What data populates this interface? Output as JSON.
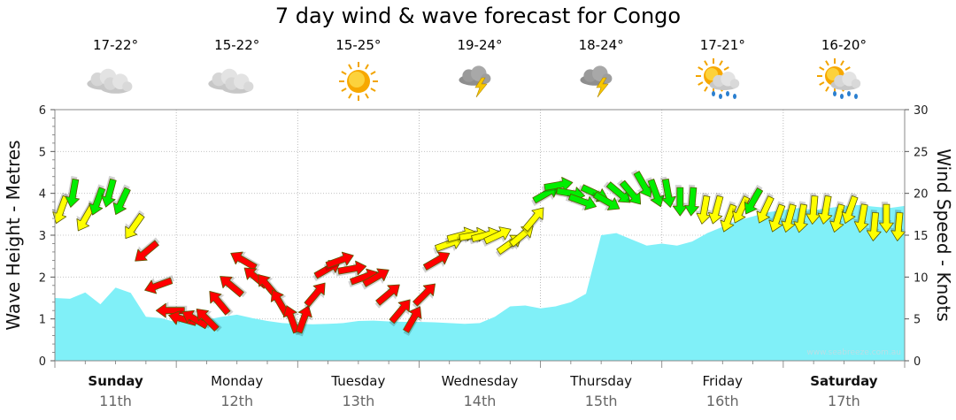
{
  "chart_data": {
    "type": "area",
    "title": "7 day wind & wave forecast for Congo",
    "ylabel_left": "Wave Height - Metres",
    "ylabel_right": "Wind Speed - Knots",
    "ylim_left": [
      0,
      6
    ],
    "ylim_right": [
      0,
      30
    ],
    "yticks_left": [
      "0",
      "1",
      "2",
      "3",
      "4",
      "5",
      "6"
    ],
    "yticks_right": [
      "0",
      "5",
      "10",
      "15",
      "20",
      "25",
      "30"
    ],
    "credit": "www.seabreeze.com.au",
    "grid": true,
    "days": [
      {
        "name": "Sunday",
        "date": "11th",
        "bold": true,
        "temp": "17-22°",
        "icon": "cloudy-icon"
      },
      {
        "name": "Monday",
        "date": "12th",
        "bold": false,
        "temp": "15-22°",
        "icon": "cloudy-icon"
      },
      {
        "name": "Tuesday",
        "date": "13th",
        "bold": false,
        "temp": "15-25°",
        "icon": "sunny-icon"
      },
      {
        "name": "Wednesday",
        "date": "14th",
        "bold": false,
        "temp": "19-24°",
        "icon": "thunderstorm-icon"
      },
      {
        "name": "Thursday",
        "date": "15th",
        "bold": false,
        "temp": "18-24°",
        "icon": "thunderstorm-icon"
      },
      {
        "name": "Friday",
        "date": "16th",
        "bold": false,
        "temp": "17-21°",
        "icon": "sun-showers-icon"
      },
      {
        "name": "Saturday",
        "date": "17th",
        "bold": true,
        "temp": "16-20°",
        "icon": "sun-showers-icon"
      }
    ],
    "wave_series": {
      "color": "#80f0f8",
      "x": [
        0,
        0.125,
        0.25,
        0.375,
        0.5,
        0.625,
        0.75,
        0.875,
        1,
        1.125,
        1.25,
        1.375,
        1.5,
        1.625,
        1.75,
        1.875,
        2,
        2.125,
        2.25,
        2.375,
        2.5,
        2.625,
        2.75,
        2.875,
        3,
        3.125,
        3.25,
        3.375,
        3.5,
        3.625,
        3.75,
        3.875,
        4,
        4.125,
        4.25,
        4.375,
        4.5,
        4.625,
        4.75,
        4.875,
        5,
        5.125,
        5.25,
        5.375,
        5.5,
        5.625,
        5.75,
        5.875,
        6,
        6.125,
        6.25,
        6.375,
        6.5,
        6.625,
        6.75,
        6.875,
        7
      ],
      "values": [
        1.5,
        1.48,
        1.63,
        1.35,
        1.75,
        1.62,
        1.05,
        1.02,
        0.92,
        1.0,
        0.98,
        1.05,
        1.1,
        1.02,
        0.95,
        0.9,
        0.88,
        0.87,
        0.88,
        0.9,
        0.95,
        0.96,
        0.94,
        0.93,
        0.93,
        0.92,
        0.9,
        0.88,
        0.9,
        1.05,
        1.3,
        1.32,
        1.25,
        1.3,
        1.4,
        1.6,
        3.0,
        3.05,
        2.9,
        2.75,
        2.8,
        2.75,
        2.85,
        3.05,
        3.2,
        3.35,
        3.45,
        3.55,
        3.6,
        3.65,
        3.6,
        3.65,
        3.7,
        3.72,
        3.68,
        3.65,
        3.7
      ]
    },
    "wind_series": {
      "unit": "knots",
      "colors": {
        "strong": "#ff0000",
        "moderate": "#ffff00",
        "light": "#00ee00"
      },
      "x": [
        0.05,
        0.15,
        0.25,
        0.35,
        0.45,
        0.55,
        0.65,
        0.75,
        0.85,
        0.95,
        1.05,
        1.15,
        1.25,
        1.35,
        1.45,
        1.55,
        1.65,
        1.75,
        1.85,
        1.95,
        2.05,
        2.15,
        2.25,
        2.35,
        2.45,
        2.55,
        2.65,
        2.75,
        2.85,
        2.95,
        3.05,
        3.15,
        3.25,
        3.35,
        3.45,
        3.55,
        3.65,
        3.75,
        3.85,
        3.95,
        4.05,
        4.15,
        4.25,
        4.35,
        4.45,
        4.55,
        4.65,
        4.75,
        4.85,
        4.95,
        5.05,
        5.15,
        5.25,
        5.35,
        5.45,
        5.55,
        5.65,
        5.75,
        5.85,
        5.95,
        6.05,
        6.15,
        6.25,
        6.35,
        6.45,
        6.55,
        6.65,
        6.75,
        6.85,
        6.95
      ],
      "speed": [
        18,
        20,
        17,
        19,
        20,
        19,
        16,
        13,
        9,
        6,
        5,
        5,
        5,
        7,
        9,
        12,
        10,
        9,
        7,
        5,
        5,
        8,
        11,
        12,
        11,
        10,
        10,
        8,
        6,
        5,
        8,
        12,
        14,
        15,
        15,
        15,
        15,
        14,
        15,
        17,
        20,
        21,
        20,
        19,
        20,
        19,
        20,
        20,
        21,
        20,
        20,
        19,
        19,
        18,
        18,
        17,
        18,
        19,
        18,
        17,
        17,
        17,
        18,
        18,
        17,
        18,
        17,
        16,
        17,
        16
      ],
      "direction_deg": [
        200,
        190,
        210,
        200,
        195,
        205,
        215,
        230,
        250,
        270,
        285,
        300,
        315,
        320,
        310,
        300,
        310,
        320,
        330,
        340,
        20,
        40,
        60,
        70,
        80,
        70,
        60,
        50,
        40,
        30,
        45,
        60,
        70,
        75,
        80,
        75,
        65,
        55,
        50,
        40,
        60,
        80,
        100,
        110,
        115,
        120,
        130,
        140,
        150,
        160,
        170,
        180,
        185,
        190,
        195,
        200,
        205,
        210,
        205,
        200,
        195,
        190,
        185,
        190,
        195,
        200,
        190,
        185,
        180,
        185
      ]
    }
  }
}
